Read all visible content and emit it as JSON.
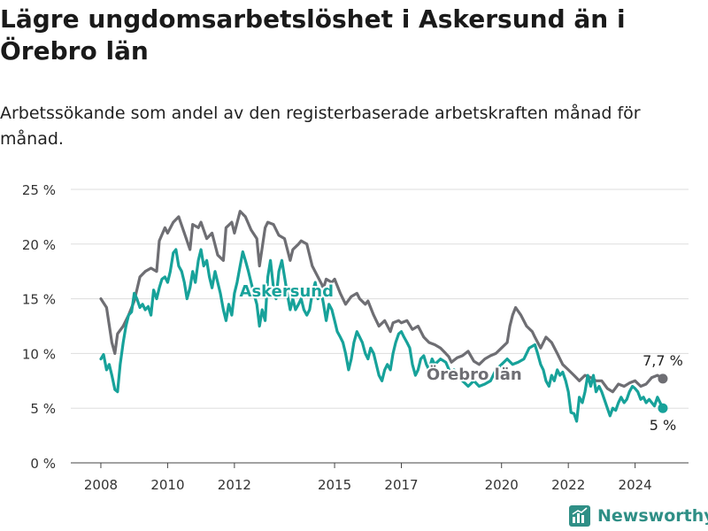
{
  "title": "Lägre ungdomsarbetslöshet i Askersund än i Örebro län",
  "subtitle": "Arbetssökande som andel av den registerbaserade arbetskraften månad för månad.",
  "brand": "Newsworthy",
  "colors": {
    "askersund": "#17a29a",
    "orebro": "#6e6e73",
    "grid": "#dddddd",
    "brand": "#2f8f86"
  },
  "chart_data": {
    "type": "line",
    "x_ticks": [
      "2008",
      "2010",
      "2012",
      "2015",
      "2017",
      "2020",
      "2022",
      "2024"
    ],
    "x_tick_values": [
      2008,
      2010,
      2012,
      2015,
      2017,
      2020,
      2022,
      2024
    ],
    "y_ticks": [
      "0 %",
      "5 %",
      "10 %",
      "15 %",
      "20 %",
      "25 %"
    ],
    "y_tick_values": [
      0,
      5,
      10,
      15,
      20,
      25
    ],
    "xlim": [
      2007.1,
      2025.6
    ],
    "ylim": [
      0,
      25
    ],
    "grid": true,
    "series": [
      {
        "name": "Örebro län",
        "color": "#6e6e73",
        "end_label": "7,7 %",
        "points": [
          [
            2008.0,
            15.0
          ],
          [
            2008.17,
            14.2
          ],
          [
            2008.33,
            11.0
          ],
          [
            2008.42,
            10.0
          ],
          [
            2008.5,
            11.8
          ],
          [
            2008.67,
            12.5
          ],
          [
            2008.83,
            13.5
          ],
          [
            2009.0,
            14.8
          ],
          [
            2009.17,
            17.0
          ],
          [
            2009.33,
            17.5
          ],
          [
            2009.5,
            17.8
          ],
          [
            2009.67,
            17.5
          ],
          [
            2009.75,
            20.3
          ],
          [
            2009.92,
            21.5
          ],
          [
            2010.0,
            21.0
          ],
          [
            2010.17,
            22.0
          ],
          [
            2010.33,
            22.5
          ],
          [
            2010.5,
            21.0
          ],
          [
            2010.67,
            19.5
          ],
          [
            2010.75,
            21.8
          ],
          [
            2010.92,
            21.5
          ],
          [
            2011.0,
            22.0
          ],
          [
            2011.17,
            20.5
          ],
          [
            2011.33,
            21.0
          ],
          [
            2011.5,
            19.0
          ],
          [
            2011.67,
            18.5
          ],
          [
            2011.75,
            21.5
          ],
          [
            2011.92,
            22.0
          ],
          [
            2012.0,
            21.0
          ],
          [
            2012.17,
            23.0
          ],
          [
            2012.33,
            22.5
          ],
          [
            2012.5,
            21.3
          ],
          [
            2012.67,
            20.5
          ],
          [
            2012.75,
            18.0
          ],
          [
            2012.92,
            21.5
          ],
          [
            2013.0,
            22.0
          ],
          [
            2013.17,
            21.8
          ],
          [
            2013.33,
            20.8
          ],
          [
            2013.5,
            20.5
          ],
          [
            2013.67,
            18.5
          ],
          [
            2013.75,
            19.5
          ],
          [
            2013.92,
            20.0
          ],
          [
            2014.0,
            20.3
          ],
          [
            2014.17,
            20.0
          ],
          [
            2014.33,
            18.0
          ],
          [
            2014.5,
            17.0
          ],
          [
            2014.67,
            16.0
          ],
          [
            2014.75,
            16.8
          ],
          [
            2014.92,
            16.5
          ],
          [
            2015.0,
            16.8
          ],
          [
            2015.17,
            15.5
          ],
          [
            2015.33,
            14.5
          ],
          [
            2015.5,
            15.2
          ],
          [
            2015.67,
            15.5
          ],
          [
            2015.75,
            15.0
          ],
          [
            2015.92,
            14.5
          ],
          [
            2016.0,
            14.8
          ],
          [
            2016.17,
            13.5
          ],
          [
            2016.33,
            12.5
          ],
          [
            2016.5,
            13.0
          ],
          [
            2016.67,
            12.0
          ],
          [
            2016.75,
            12.8
          ],
          [
            2016.92,
            13.0
          ],
          [
            2017.0,
            12.8
          ],
          [
            2017.17,
            13.0
          ],
          [
            2017.33,
            12.2
          ],
          [
            2017.5,
            12.5
          ],
          [
            2017.67,
            11.5
          ],
          [
            2017.83,
            11.0
          ],
          [
            2018.0,
            10.8
          ],
          [
            2018.17,
            10.5
          ],
          [
            2018.33,
            10.0
          ],
          [
            2018.42,
            9.7
          ],
          [
            2018.5,
            9.2
          ],
          [
            2018.67,
            9.6
          ],
          [
            2018.83,
            9.8
          ],
          [
            2019.0,
            10.2
          ],
          [
            2019.17,
            9.3
          ],
          [
            2019.33,
            9.0
          ],
          [
            2019.5,
            9.5
          ],
          [
            2019.67,
            9.8
          ],
          [
            2019.83,
            10.0
          ],
          [
            2020.0,
            10.5
          ],
          [
            2020.17,
            11.0
          ],
          [
            2020.25,
            12.5
          ],
          [
            2020.33,
            13.5
          ],
          [
            2020.42,
            14.2
          ],
          [
            2020.58,
            13.5
          ],
          [
            2020.75,
            12.5
          ],
          [
            2020.92,
            12.0
          ],
          [
            2021.0,
            11.5
          ],
          [
            2021.17,
            10.5
          ],
          [
            2021.33,
            11.5
          ],
          [
            2021.5,
            11.0
          ],
          [
            2021.67,
            10.0
          ],
          [
            2021.83,
            9.0
          ],
          [
            2022.0,
            8.5
          ],
          [
            2022.17,
            8.0
          ],
          [
            2022.33,
            7.5
          ],
          [
            2022.5,
            8.0
          ],
          [
            2022.67,
            7.8
          ],
          [
            2022.83,
            7.5
          ],
          [
            2023.0,
            7.5
          ],
          [
            2023.17,
            6.8
          ],
          [
            2023.33,
            6.5
          ],
          [
            2023.5,
            7.2
          ],
          [
            2023.67,
            7.0
          ],
          [
            2023.83,
            7.3
          ],
          [
            2024.0,
            7.5
          ],
          [
            2024.17,
            7.0
          ],
          [
            2024.33,
            7.2
          ],
          [
            2024.5,
            7.8
          ],
          [
            2024.67,
            8.0
          ],
          [
            2024.83,
            7.7
          ]
        ]
      },
      {
        "name": "Askersund",
        "color": "#17a29a",
        "end_label": "5 %",
        "points": [
          [
            2008.0,
            9.5
          ],
          [
            2008.08,
            9.9
          ],
          [
            2008.17,
            8.5
          ],
          [
            2008.25,
            9.0
          ],
          [
            2008.33,
            8.0
          ],
          [
            2008.42,
            6.7
          ],
          [
            2008.5,
            6.5
          ],
          [
            2008.58,
            9.0
          ],
          [
            2008.67,
            11.0
          ],
          [
            2008.75,
            12.5
          ],
          [
            2008.83,
            13.5
          ],
          [
            2008.92,
            13.8
          ],
          [
            2009.0,
            15.5
          ],
          [
            2009.08,
            15.0
          ],
          [
            2009.17,
            14.2
          ],
          [
            2009.25,
            14.5
          ],
          [
            2009.33,
            14.0
          ],
          [
            2009.42,
            14.3
          ],
          [
            2009.5,
            13.5
          ],
          [
            2009.58,
            15.8
          ],
          [
            2009.67,
            15.0
          ],
          [
            2009.75,
            16.0
          ],
          [
            2009.83,
            16.8
          ],
          [
            2009.92,
            17.0
          ],
          [
            2010.0,
            16.5
          ],
          [
            2010.08,
            17.5
          ],
          [
            2010.17,
            19.2
          ],
          [
            2010.25,
            19.5
          ],
          [
            2010.33,
            18.0
          ],
          [
            2010.42,
            17.5
          ],
          [
            2010.5,
            16.5
          ],
          [
            2010.58,
            15.0
          ],
          [
            2010.67,
            16.0
          ],
          [
            2010.75,
            17.5
          ],
          [
            2010.83,
            16.5
          ],
          [
            2010.92,
            18.5
          ],
          [
            2011.0,
            19.5
          ],
          [
            2011.08,
            18.0
          ],
          [
            2011.17,
            18.5
          ],
          [
            2011.25,
            17.0
          ],
          [
            2011.33,
            16.0
          ],
          [
            2011.42,
            17.5
          ],
          [
            2011.5,
            16.5
          ],
          [
            2011.58,
            15.5
          ],
          [
            2011.67,
            14.0
          ],
          [
            2011.75,
            13.0
          ],
          [
            2011.83,
            14.5
          ],
          [
            2011.92,
            13.5
          ],
          [
            2012.0,
            15.5
          ],
          [
            2012.08,
            16.5
          ],
          [
            2012.17,
            18.0
          ],
          [
            2012.25,
            19.3
          ],
          [
            2012.33,
            18.5
          ],
          [
            2012.42,
            17.5
          ],
          [
            2012.5,
            16.5
          ],
          [
            2012.58,
            15.5
          ],
          [
            2012.67,
            14.5
          ],
          [
            2012.75,
            12.5
          ],
          [
            2012.83,
            14.0
          ],
          [
            2012.92,
            13.0
          ],
          [
            2013.0,
            17.0
          ],
          [
            2013.08,
            18.5
          ],
          [
            2013.17,
            16.0
          ],
          [
            2013.25,
            15.0
          ],
          [
            2013.33,
            17.5
          ],
          [
            2013.42,
            18.5
          ],
          [
            2013.5,
            17.0
          ],
          [
            2013.58,
            15.5
          ],
          [
            2013.67,
            14.0
          ],
          [
            2013.75,
            15.0
          ],
          [
            2013.83,
            14.0
          ],
          [
            2013.92,
            14.5
          ],
          [
            2014.0,
            15.0
          ],
          [
            2014.08,
            14.0
          ],
          [
            2014.17,
            13.5
          ],
          [
            2014.25,
            14.0
          ],
          [
            2014.33,
            15.5
          ],
          [
            2014.42,
            16.5
          ],
          [
            2014.5,
            15.0
          ],
          [
            2014.58,
            16.0
          ],
          [
            2014.67,
            14.5
          ],
          [
            2014.75,
            13.0
          ],
          [
            2014.83,
            14.5
          ],
          [
            2014.92,
            14.0
          ],
          [
            2015.0,
            13.0
          ],
          [
            2015.08,
            12.0
          ],
          [
            2015.17,
            11.5
          ],
          [
            2015.25,
            11.0
          ],
          [
            2015.33,
            10.0
          ],
          [
            2015.42,
            8.5
          ],
          [
            2015.5,
            9.5
          ],
          [
            2015.58,
            11.0
          ],
          [
            2015.67,
            12.0
          ],
          [
            2015.75,
            11.5
          ],
          [
            2015.83,
            11.0
          ],
          [
            2015.92,
            10.0
          ],
          [
            2016.0,
            9.5
          ],
          [
            2016.08,
            10.5
          ],
          [
            2016.17,
            10.0
          ],
          [
            2016.25,
            9.0
          ],
          [
            2016.33,
            8.0
          ],
          [
            2016.42,
            7.5
          ],
          [
            2016.5,
            8.5
          ],
          [
            2016.58,
            9.0
          ],
          [
            2016.67,
            8.5
          ],
          [
            2016.75,
            10.0
          ],
          [
            2016.83,
            11.0
          ],
          [
            2016.92,
            11.8
          ],
          [
            2017.0,
            12.0
          ],
          [
            2017.08,
            11.5
          ],
          [
            2017.17,
            11.0
          ],
          [
            2017.25,
            10.5
          ],
          [
            2017.33,
            9.0
          ],
          [
            2017.42,
            8.0
          ],
          [
            2017.5,
            8.5
          ],
          [
            2017.58,
            9.5
          ],
          [
            2017.67,
            9.8
          ],
          [
            2017.75,
            9.0
          ],
          [
            2017.83,
            8.5
          ],
          [
            2017.92,
            9.5
          ],
          [
            2018.0,
            9.0
          ],
          [
            2018.17,
            9.5
          ],
          [
            2018.33,
            9.2
          ],
          [
            2018.5,
            8.0
          ],
          [
            2018.58,
            8.5
          ],
          [
            2018.67,
            8.0
          ],
          [
            2018.83,
            7.5
          ],
          [
            2019.0,
            7.0
          ],
          [
            2019.17,
            7.5
          ],
          [
            2019.33,
            7.0
          ],
          [
            2019.5,
            7.2
          ],
          [
            2019.67,
            7.5
          ],
          [
            2019.83,
            8.5
          ],
          [
            2020.0,
            9.0
          ],
          [
            2020.17,
            9.5
          ],
          [
            2020.33,
            9.0
          ],
          [
            2020.5,
            9.2
          ],
          [
            2020.67,
            9.5
          ],
          [
            2020.83,
            10.5
          ],
          [
            2021.0,
            10.8
          ],
          [
            2021.08,
            10.0
          ],
          [
            2021.17,
            9.0
          ],
          [
            2021.25,
            8.5
          ],
          [
            2021.33,
            7.5
          ],
          [
            2021.42,
            7.0
          ],
          [
            2021.5,
            8.0
          ],
          [
            2021.58,
            7.5
          ],
          [
            2021.67,
            8.5
          ],
          [
            2021.75,
            8.0
          ],
          [
            2021.83,
            8.3
          ],
          [
            2021.92,
            7.5
          ],
          [
            2022.0,
            6.5
          ],
          [
            2022.08,
            4.6
          ],
          [
            2022.17,
            4.5
          ],
          [
            2022.25,
            3.8
          ],
          [
            2022.33,
            6.0
          ],
          [
            2022.42,
            5.5
          ],
          [
            2022.5,
            6.5
          ],
          [
            2022.58,
            8.0
          ],
          [
            2022.67,
            7.0
          ],
          [
            2022.75,
            8.0
          ],
          [
            2022.83,
            6.5
          ],
          [
            2022.92,
            7.0
          ],
          [
            2023.0,
            6.5
          ],
          [
            2023.08,
            5.8
          ],
          [
            2023.17,
            5.0
          ],
          [
            2023.25,
            4.3
          ],
          [
            2023.33,
            5.0
          ],
          [
            2023.42,
            4.8
          ],
          [
            2023.5,
            5.5
          ],
          [
            2023.58,
            6.0
          ],
          [
            2023.67,
            5.5
          ],
          [
            2023.75,
            5.8
          ],
          [
            2023.83,
            6.5
          ],
          [
            2023.92,
            7.0
          ],
          [
            2024.0,
            6.8
          ],
          [
            2024.08,
            6.5
          ],
          [
            2024.17,
            5.8
          ],
          [
            2024.25,
            6.0
          ],
          [
            2024.33,
            5.5
          ],
          [
            2024.42,
            5.8
          ],
          [
            2024.5,
            5.5
          ],
          [
            2024.58,
            5.2
          ],
          [
            2024.67,
            6.0
          ],
          [
            2024.75,
            5.5
          ],
          [
            2024.83,
            5.0
          ]
        ]
      }
    ]
  }
}
